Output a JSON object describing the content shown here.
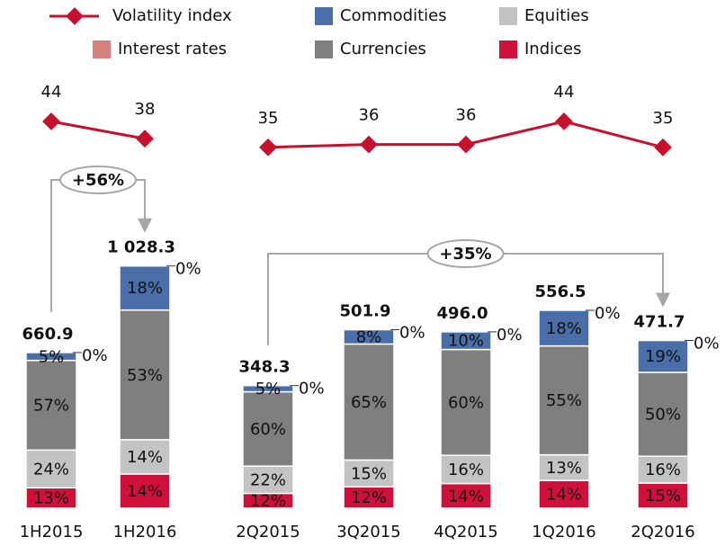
{
  "chart_data": [
    {
      "type": "bar",
      "categories": [
        "1H2015",
        "1H2016"
      ],
      "series": [
        {
          "name": "Indices",
          "color": "#d0103a",
          "values": [
            13,
            14
          ],
          "value_labels": [
            "13%",
            "14%"
          ]
        },
        {
          "name": "Equities",
          "color": "#c3c3c3",
          "values": [
            24,
            14
          ],
          "value_labels": [
            "24%",
            "14%"
          ]
        },
        {
          "name": "Currencies",
          "color": "#7f7f7f",
          "values": [
            57,
            53
          ],
          "value_labels": [
            "57%",
            "53%"
          ]
        },
        {
          "name": "Commodities",
          "color": "#4a6ea8",
          "values": [
            5,
            18
          ],
          "value_labels": [
            "5%",
            "18%"
          ]
        },
        {
          "name": "Interest rates",
          "color": "#d98181",
          "values": [
            0,
            0
          ],
          "value_labels": [
            "0%",
            "0%"
          ]
        }
      ],
      "totals": {
        "values": [
          660.9,
          1028.3
        ],
        "value_labels": [
          "660.9",
          "1 028.3"
        ]
      },
      "line": {
        "type": "line",
        "name": "Volatility index",
        "color": "#c8102e",
        "values": [
          44,
          38
        ]
      },
      "annotation": "+56%"
    },
    {
      "type": "bar",
      "categories": [
        "2Q2015",
        "3Q2015",
        "4Q2015",
        "1Q2016",
        "2Q2016"
      ],
      "series": [
        {
          "color": "#d0103a",
          "values": [
            12,
            12,
            14,
            14,
            15
          ],
          "value_labels": [
            "12%",
            "12%",
            "14%",
            "14%",
            "15%"
          ]
        },
        {
          "color": "#c3c3c3",
          "values": [
            22,
            15,
            16,
            13,
            16
          ],
          "value_labels": [
            "22%",
            "15%",
            "16%",
            "13%",
            "16%"
          ]
        },
        {
          "color": "#7f7f7f",
          "values": [
            60,
            65,
            60,
            55,
            50
          ],
          "value_labels": [
            "60%",
            "65%",
            "60%",
            "55%",
            "50%"
          ]
        },
        {
          "color": "#4a6ea8",
          "values": [
            5,
            8,
            10,
            18,
            19
          ],
          "value_labels": [
            "5%",
            "8%",
            "10%",
            "18%",
            "19%"
          ]
        },
        {
          "color": "#d98181",
          "values": [
            0,
            0,
            0,
            0,
            0
          ],
          "value_labels": [
            "0%",
            "0%",
            "0%",
            "0%",
            "0%"
          ]
        }
      ],
      "totals": {
        "values": [
          348.3,
          501.9,
          496.0,
          556.5,
          471.7
        ],
        "value_labels": [
          "348.3",
          "501.9",
          "496.0",
          "556.5",
          "471.7"
        ]
      },
      "line": {
        "type": "line",
        "color": "#c8102e",
        "values": [
          35,
          36,
          36,
          44,
          35
        ]
      },
      "annotation": "+35%"
    }
  ]
}
